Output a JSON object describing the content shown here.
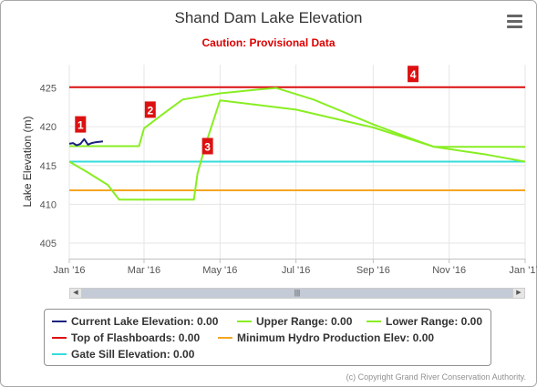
{
  "title": "Shand Dam Lake Elevation",
  "subtitle": "Caution: Provisional Data",
  "menu_icon": "hamburger-menu-icon",
  "credits": "(c) Copyright Grand River Conservation Authority.",
  "scrollbar": {
    "left_arrow": "◀",
    "right_arrow": "▶",
    "thumb_grip": "|||"
  },
  "chart_data": {
    "type": "line",
    "ylabel": "Lake Elevation (m)",
    "xlabel": "",
    "xlim": [
      "2016-01-01",
      "2017-01-01"
    ],
    "ylim": [
      403,
      428
    ],
    "y_ticks": [
      405,
      410,
      415,
      420,
      425
    ],
    "x_ticks": [
      {
        "date": "2016-01-01",
        "label": "Jan '16"
      },
      {
        "date": "2016-03-01",
        "label": "Mar '16"
      },
      {
        "date": "2016-05-01",
        "label": "May '16"
      },
      {
        "date": "2016-07-01",
        "label": "Jul '16"
      },
      {
        "date": "2016-09-01",
        "label": "Sep '16"
      },
      {
        "date": "2016-11-01",
        "label": "Nov '16"
      },
      {
        "date": "2017-01-01",
        "label": "Jan '17"
      }
    ],
    "grid": true,
    "legend_position": "bottom",
    "series": [
      {
        "name": "Current Lake Elevation: 0.00",
        "color": "#1a237e",
        "points": [
          [
            "2016-01-01",
            417.8
          ],
          [
            "2016-01-04",
            417.9
          ],
          [
            "2016-01-07",
            417.6
          ],
          [
            "2016-01-10",
            417.8
          ],
          [
            "2016-01-13",
            418.4
          ],
          [
            "2016-01-16",
            417.7
          ],
          [
            "2016-01-19",
            417.9
          ],
          [
            "2016-01-22",
            418.0
          ],
          [
            "2016-01-28",
            418.1
          ]
        ]
      },
      {
        "name": "Upper Range: 0.00",
        "color": "#88ee22",
        "points": [
          [
            "2016-01-01",
            417.5
          ],
          [
            "2016-02-26",
            417.5
          ],
          [
            "2016-03-01",
            419.8
          ],
          [
            "2016-03-15",
            421.5
          ],
          [
            "2016-04-01",
            423.5
          ],
          [
            "2016-05-01",
            424.3
          ],
          [
            "2016-06-01",
            424.8
          ],
          [
            "2016-06-15",
            425.0
          ],
          [
            "2016-07-15",
            423.5
          ],
          [
            "2016-09-01",
            420.3
          ],
          [
            "2016-10-01",
            418.5
          ],
          [
            "2016-10-20",
            417.4
          ],
          [
            "2017-01-01",
            417.4
          ]
        ]
      },
      {
        "name": "Lower Range: 0.00",
        "color": "#88ee22",
        "points": [
          [
            "2016-01-01",
            415.5
          ],
          [
            "2016-01-15",
            414.2
          ],
          [
            "2016-02-01",
            412.5
          ],
          [
            "2016-02-10",
            410.6
          ],
          [
            "2016-04-10",
            410.6
          ],
          [
            "2016-04-13",
            414.0
          ],
          [
            "2016-04-20",
            418.0
          ],
          [
            "2016-05-01",
            423.4
          ],
          [
            "2016-07-01",
            422.2
          ],
          [
            "2016-09-01",
            419.9
          ],
          [
            "2016-10-20",
            417.4
          ],
          [
            "2016-12-01",
            416.4
          ],
          [
            "2017-01-01",
            415.5
          ]
        ]
      },
      {
        "name": "Top of Flashboards: 0.00",
        "color": "#dd1111",
        "points": [
          [
            "2016-01-01",
            425.1
          ],
          [
            "2017-01-01",
            425.1
          ]
        ]
      },
      {
        "name": "Minimum Hydro Production Elev: 0.00",
        "color": "#f5a623",
        "points": [
          [
            "2016-01-01",
            411.8
          ],
          [
            "2017-01-01",
            411.8
          ]
        ]
      },
      {
        "name": "Gate Sill Elevation: 0.00",
        "color": "#33dddd",
        "points": [
          [
            "2016-01-01",
            415.5
          ],
          [
            "2017-01-01",
            415.5
          ]
        ]
      }
    ],
    "annotations": [
      {
        "label": "1",
        "date": "2016-01-10",
        "y": 420.3
      },
      {
        "label": "2",
        "date": "2016-03-06",
        "y": 422.2
      },
      {
        "label": "3",
        "date": "2016-04-21",
        "y": 417.5
      },
      {
        "label": "4",
        "date": "2016-10-03",
        "y": 426.8
      }
    ]
  }
}
